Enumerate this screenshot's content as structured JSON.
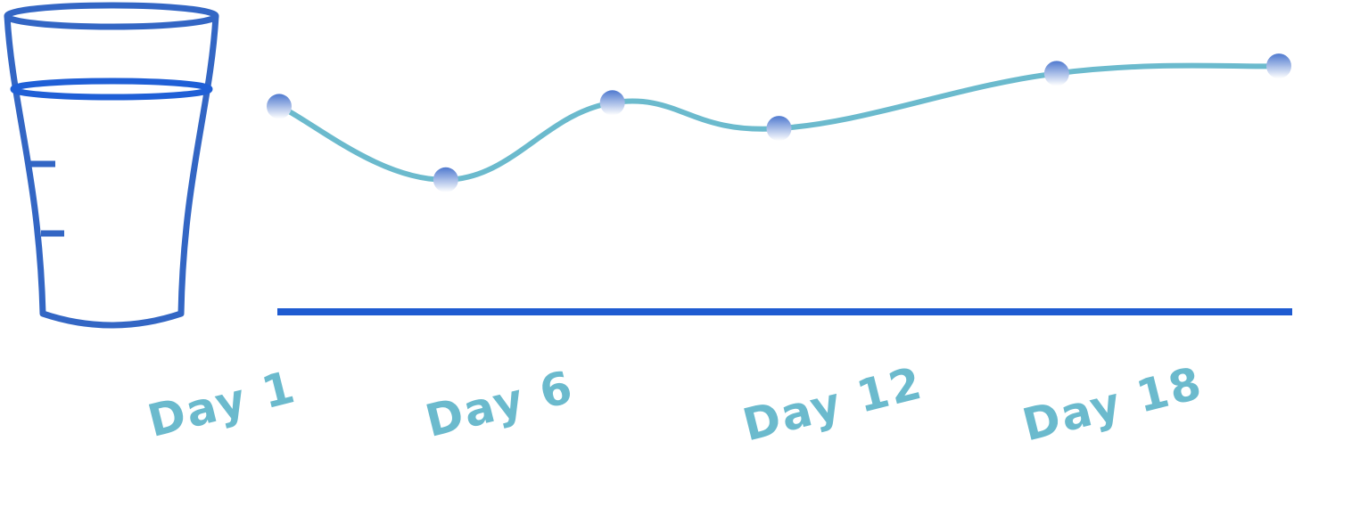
{
  "chart_data": {
    "type": "line",
    "title": "",
    "xlabel": "",
    "ylabel": "",
    "x": [
      1,
      4,
      7,
      10,
      15,
      19
    ],
    "series": [
      {
        "values": [
          5.6,
          3.6,
          5.7,
          5.0,
          6.5,
          6.7
        ]
      }
    ],
    "ylim": [
      0,
      8.5
    ],
    "xlim": [
      1,
      19
    ],
    "grid": false,
    "legend": "none",
    "x_tick_labels": [
      {
        "label": "Day 1",
        "day": 1
      },
      {
        "label": "Day 6",
        "day": 6
      },
      {
        "label": "Day 12",
        "day": 12
      },
      {
        "label": "Day 18",
        "day": 18
      }
    ]
  },
  "icon": "water-glass-icon",
  "colors": {
    "line": "#6BBACD",
    "axis": "#1E5BD1",
    "glass": "#3366C4",
    "glass_water_rim": "#1F5FD6",
    "marker_top": "#4F79CF",
    "marker_bottom": "#FFFFFF",
    "tick_label": "#6BBACD"
  }
}
